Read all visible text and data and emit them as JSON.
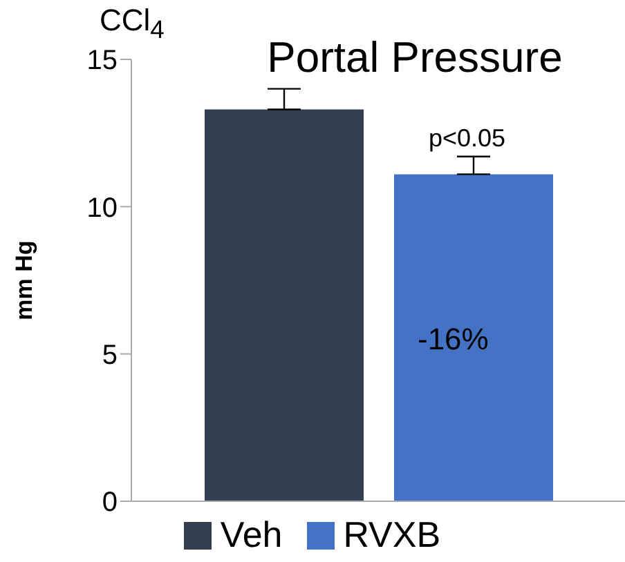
{
  "chart_data": {
    "type": "bar",
    "title": "Portal Pressure",
    "ylabel": "mm Hg",
    "categories": [
      null
    ],
    "series": [
      {
        "name": "Veh",
        "color": "#333f50",
        "values": [
          13.3
        ],
        "errors": [
          [
            13.3,
            14.0
          ]
        ]
      },
      {
        "name": "RVXB",
        "color": "#4472c4",
        "values": [
          11.1
        ],
        "errors": [
          [
            11.1,
            11.7
          ]
        ]
      }
    ],
    "ylim": [
      0,
      15
    ],
    "yticks": [
      0,
      5,
      10,
      15
    ],
    "legend": "bottom",
    "annotations": [
      "CCl$_{4}$",
      "p<0.05",
      "-16%"
    ]
  }
}
